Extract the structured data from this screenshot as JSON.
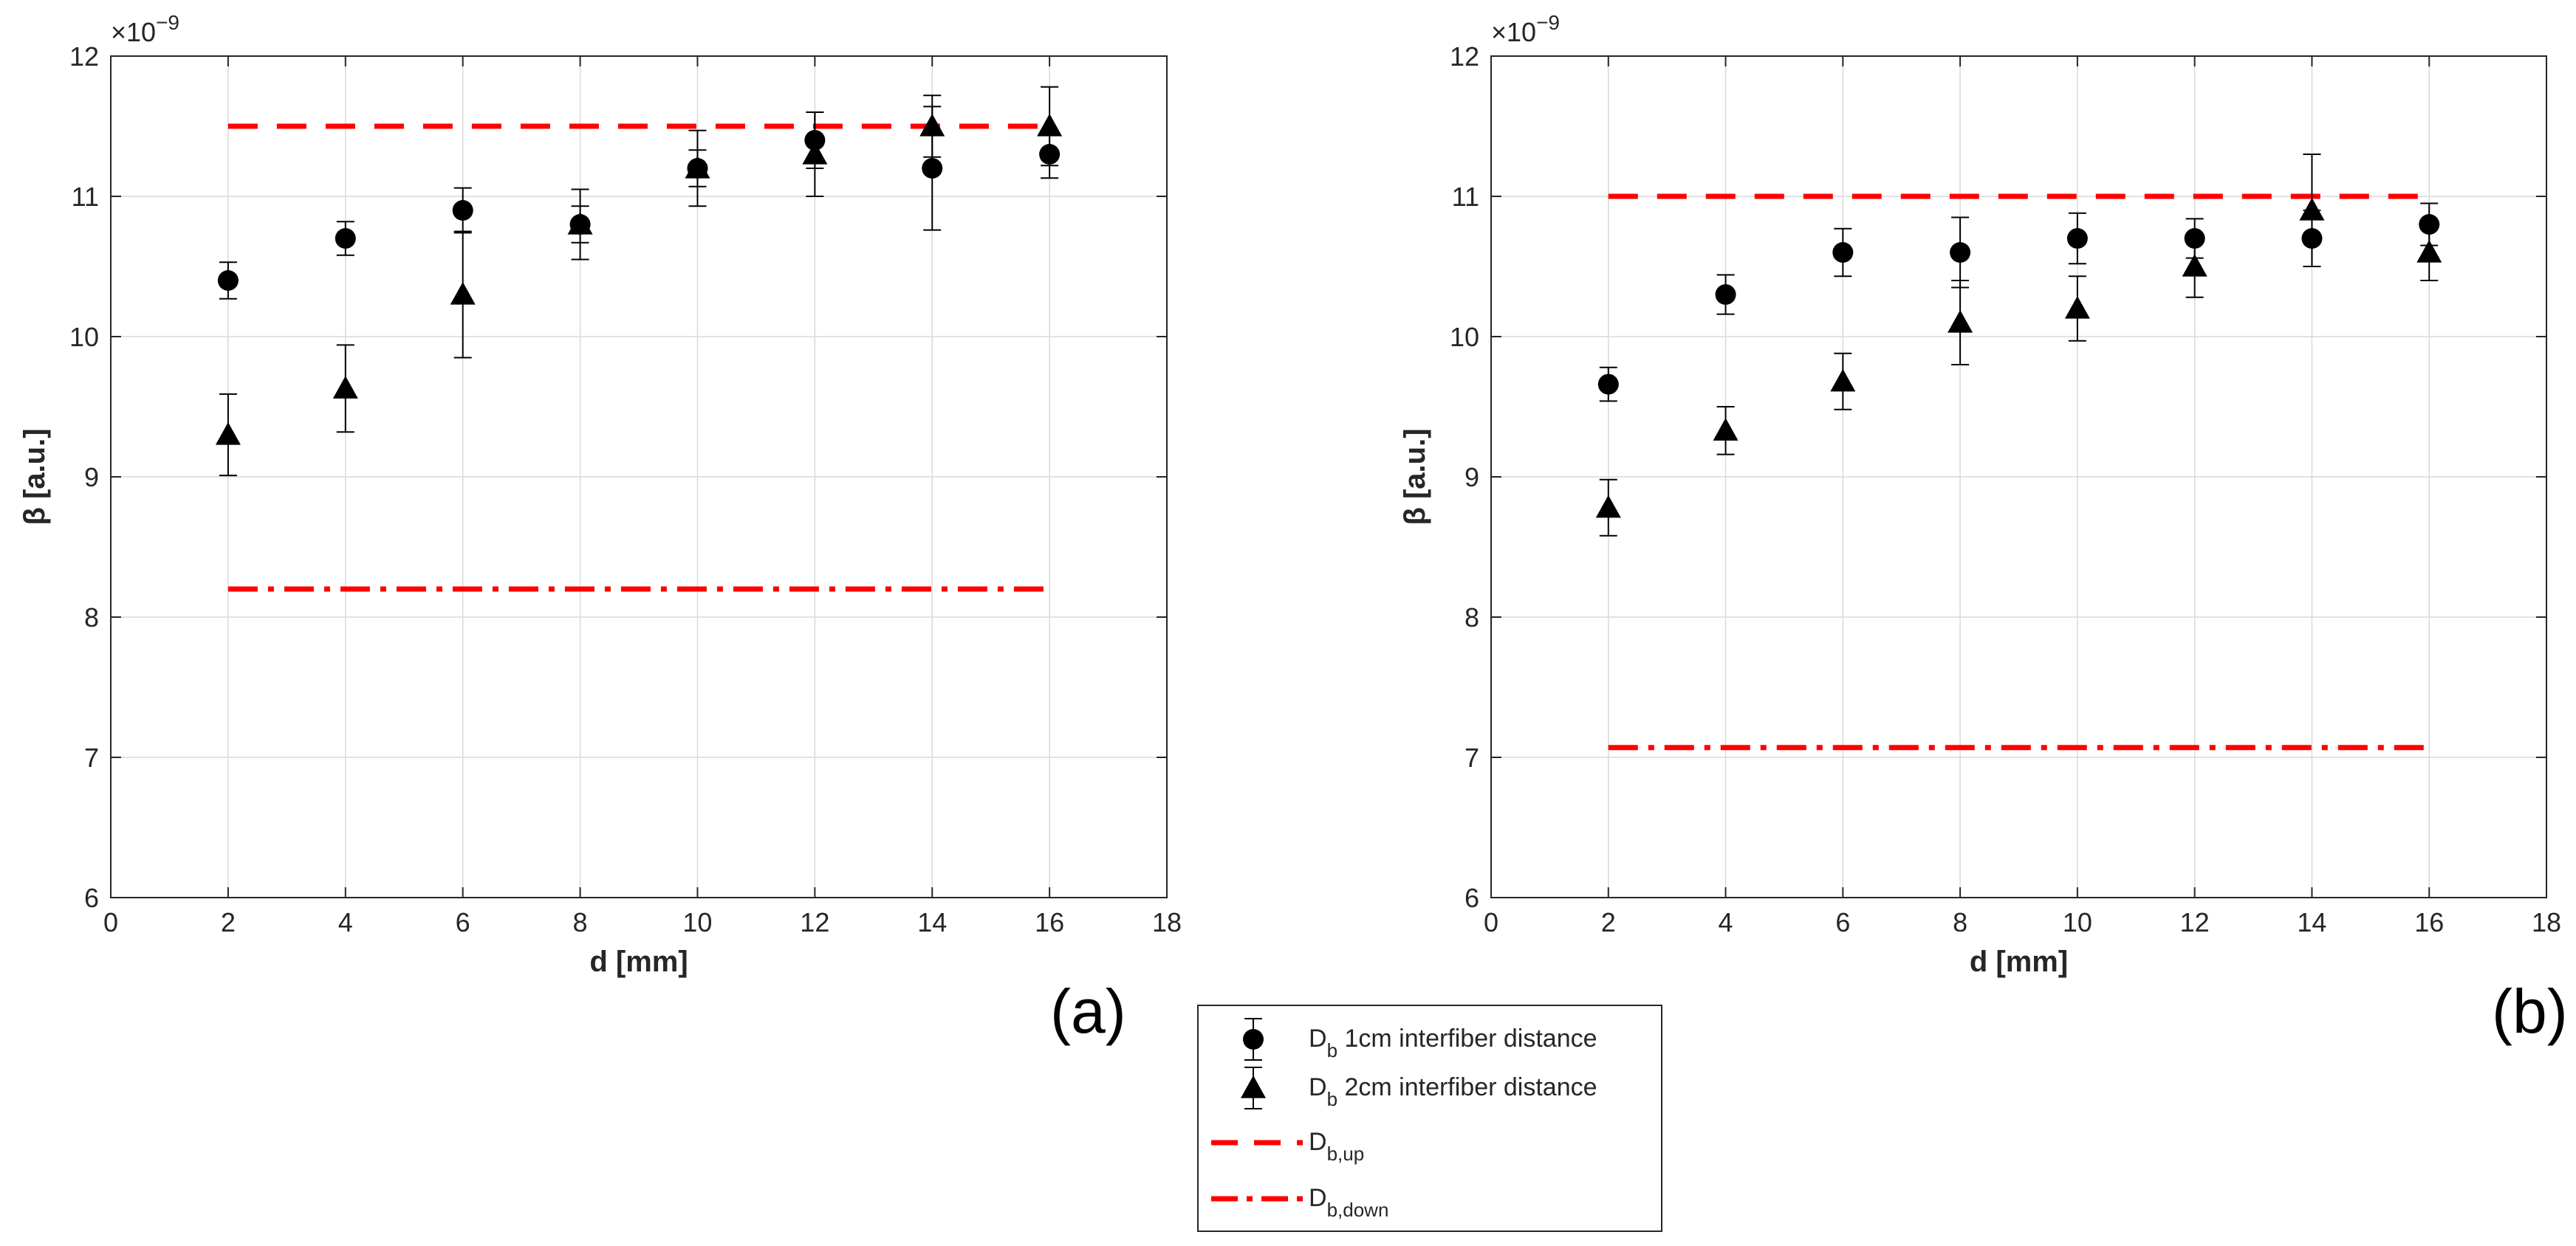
{
  "figure": {
    "panel_labels": [
      "(a)",
      "(b)"
    ],
    "legend": {
      "entries": [
        {
          "marker": "circle",
          "label_main": "D",
          "label_sub": "b",
          "label_rest": " 1cm interfiber distance"
        },
        {
          "marker": "triangle",
          "label_main": "D",
          "label_sub": "b",
          "label_rest": " 2cm interfiber distance"
        },
        {
          "marker": "dashed-line",
          "label_main": "D",
          "label_sub": "b,up",
          "label_rest": ""
        },
        {
          "marker": "dashdot-line",
          "label_main": "D",
          "label_sub": "b,down",
          "label_rest": ""
        }
      ]
    },
    "colors": {
      "series": "#000000",
      "reference": "#ff0000",
      "grid": "#d9d9d9"
    }
  },
  "chart_data": [
    {
      "type": "scatter",
      "panel": "(a)",
      "xlabel": "d [mm]",
      "ylabel": "β [a.u.]",
      "exponent_label": "×10",
      "exponent_power": "−9",
      "xlim": [
        0,
        18
      ],
      "ylim": [
        6,
        12
      ],
      "xticks": [
        0,
        2,
        4,
        6,
        8,
        10,
        12,
        14,
        16,
        18
      ],
      "yticks": [
        6,
        7,
        8,
        9,
        10,
        11,
        12
      ],
      "grid": true,
      "series": [
        {
          "name": "Db 1cm interfiber distance",
          "marker": "circle",
          "x": [
            2,
            4,
            6,
            8,
            10,
            12,
            14,
            16
          ],
          "y": [
            10.4,
            10.7,
            10.9,
            10.8,
            11.2,
            11.4,
            11.2,
            11.3
          ],
          "err": [
            0.13,
            0.12,
            0.16,
            0.13,
            0.13,
            0.2,
            0.44,
            0.17
          ]
        },
        {
          "name": "Db 2cm interfiber distance",
          "marker": "triangle",
          "x": [
            2,
            4,
            6,
            8,
            10,
            12,
            14,
            16
          ],
          "y": [
            9.3,
            9.63,
            10.3,
            10.8,
            11.2,
            11.3,
            11.5,
            11.5
          ],
          "err": [
            0.29,
            0.31,
            0.45,
            0.25,
            0.27,
            0.3,
            0.22,
            0.28
          ]
        }
      ],
      "reference_lines": [
        {
          "name": "Db,up",
          "style": "dashed",
          "x": [
            2,
            16
          ],
          "y": 11.5
        },
        {
          "name": "Db,down",
          "style": "dashdot",
          "x": [
            2,
            16
          ],
          "y": 8.2
        }
      ]
    },
    {
      "type": "scatter",
      "panel": "(b)",
      "xlabel": "d [mm]",
      "ylabel": "β [a.u.]",
      "exponent_label": "×10",
      "exponent_power": "−9",
      "xlim": [
        0,
        18
      ],
      "ylim": [
        6,
        12
      ],
      "xticks": [
        0,
        2,
        4,
        6,
        8,
        10,
        12,
        14,
        16,
        18
      ],
      "yticks": [
        6,
        7,
        8,
        9,
        10,
        11,
        12
      ],
      "grid": true,
      "series": [
        {
          "name": "Db 1cm interfiber distance",
          "marker": "circle",
          "x": [
            2,
            4,
            6,
            8,
            10,
            12,
            14,
            16
          ],
          "y": [
            9.66,
            10.3,
            10.6,
            10.6,
            10.7,
            10.7,
            10.7,
            10.8
          ],
          "err": [
            0.12,
            0.14,
            0.17,
            0.25,
            0.18,
            0.14,
            0.2,
            0.15
          ]
        },
        {
          "name": "Db 2cm interfiber distance",
          "marker": "triangle",
          "x": [
            2,
            4,
            6,
            8,
            10,
            12,
            14,
            16
          ],
          "y": [
            8.78,
            9.33,
            9.68,
            10.1,
            10.2,
            10.5,
            10.9,
            10.6
          ],
          "err": [
            0.2,
            0.17,
            0.2,
            0.3,
            0.23,
            0.22,
            0.4,
            0.2
          ]
        }
      ],
      "reference_lines": [
        {
          "name": "Db,up",
          "style": "dashed",
          "x": [
            2,
            16
          ],
          "y": 11.0
        },
        {
          "name": "Db,down",
          "style": "dashdot",
          "x": [
            2,
            16
          ],
          "y": 7.07
        }
      ]
    }
  ]
}
